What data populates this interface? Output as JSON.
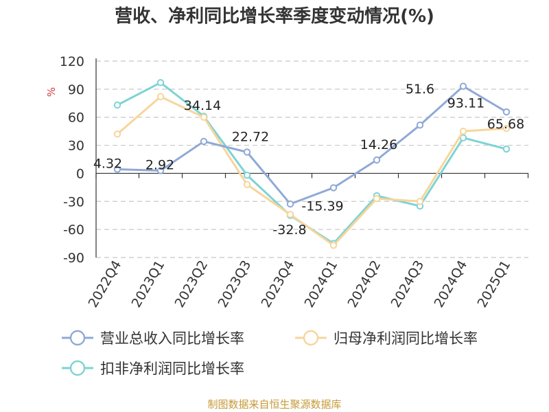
{
  "chart_data": {
    "type": "line",
    "title": "营收、净利同比增长率季度变动情况(%)",
    "ylabel": "%",
    "ylim": [
      -90,
      120
    ],
    "yticks": [
      120,
      90,
      60,
      30,
      0,
      -30,
      -60,
      -90
    ],
    "grid": true,
    "legend_position": "bottom",
    "categories": [
      "2022Q4",
      "2023Q1",
      "2023Q2",
      "2023Q3",
      "2023Q4",
      "2024Q1",
      "2024Q2",
      "2024Q3",
      "2024Q4",
      "2025Q1"
    ],
    "series": [
      {
        "name": "营业总收入同比增长率",
        "color": "#8fa9d6",
        "values": [
          4.32,
          2.92,
          34.14,
          22.72,
          -32.8,
          -15.39,
          14.26,
          51.6,
          93.11,
          65.68
        ],
        "labels": [
          "4.32",
          "2.92",
          "34.14",
          "22.72",
          "-32.8",
          "-15.39",
          "14.26",
          "51.6",
          "93.11",
          "65.68"
        ]
      },
      {
        "name": "归母净利润同比增长率",
        "color": "#f7d59b",
        "values": [
          42,
          82,
          60,
          -12,
          -44,
          -77,
          -27,
          -30,
          45,
          48
        ]
      },
      {
        "name": "扣非净利润同比增长率",
        "color": "#7ed3d4",
        "values": [
          73,
          97,
          61,
          -2,
          -45,
          -75,
          -24,
          -35,
          38,
          26
        ]
      }
    ]
  },
  "footer": {
    "source": "制图数据来自恒生聚源数据库"
  }
}
